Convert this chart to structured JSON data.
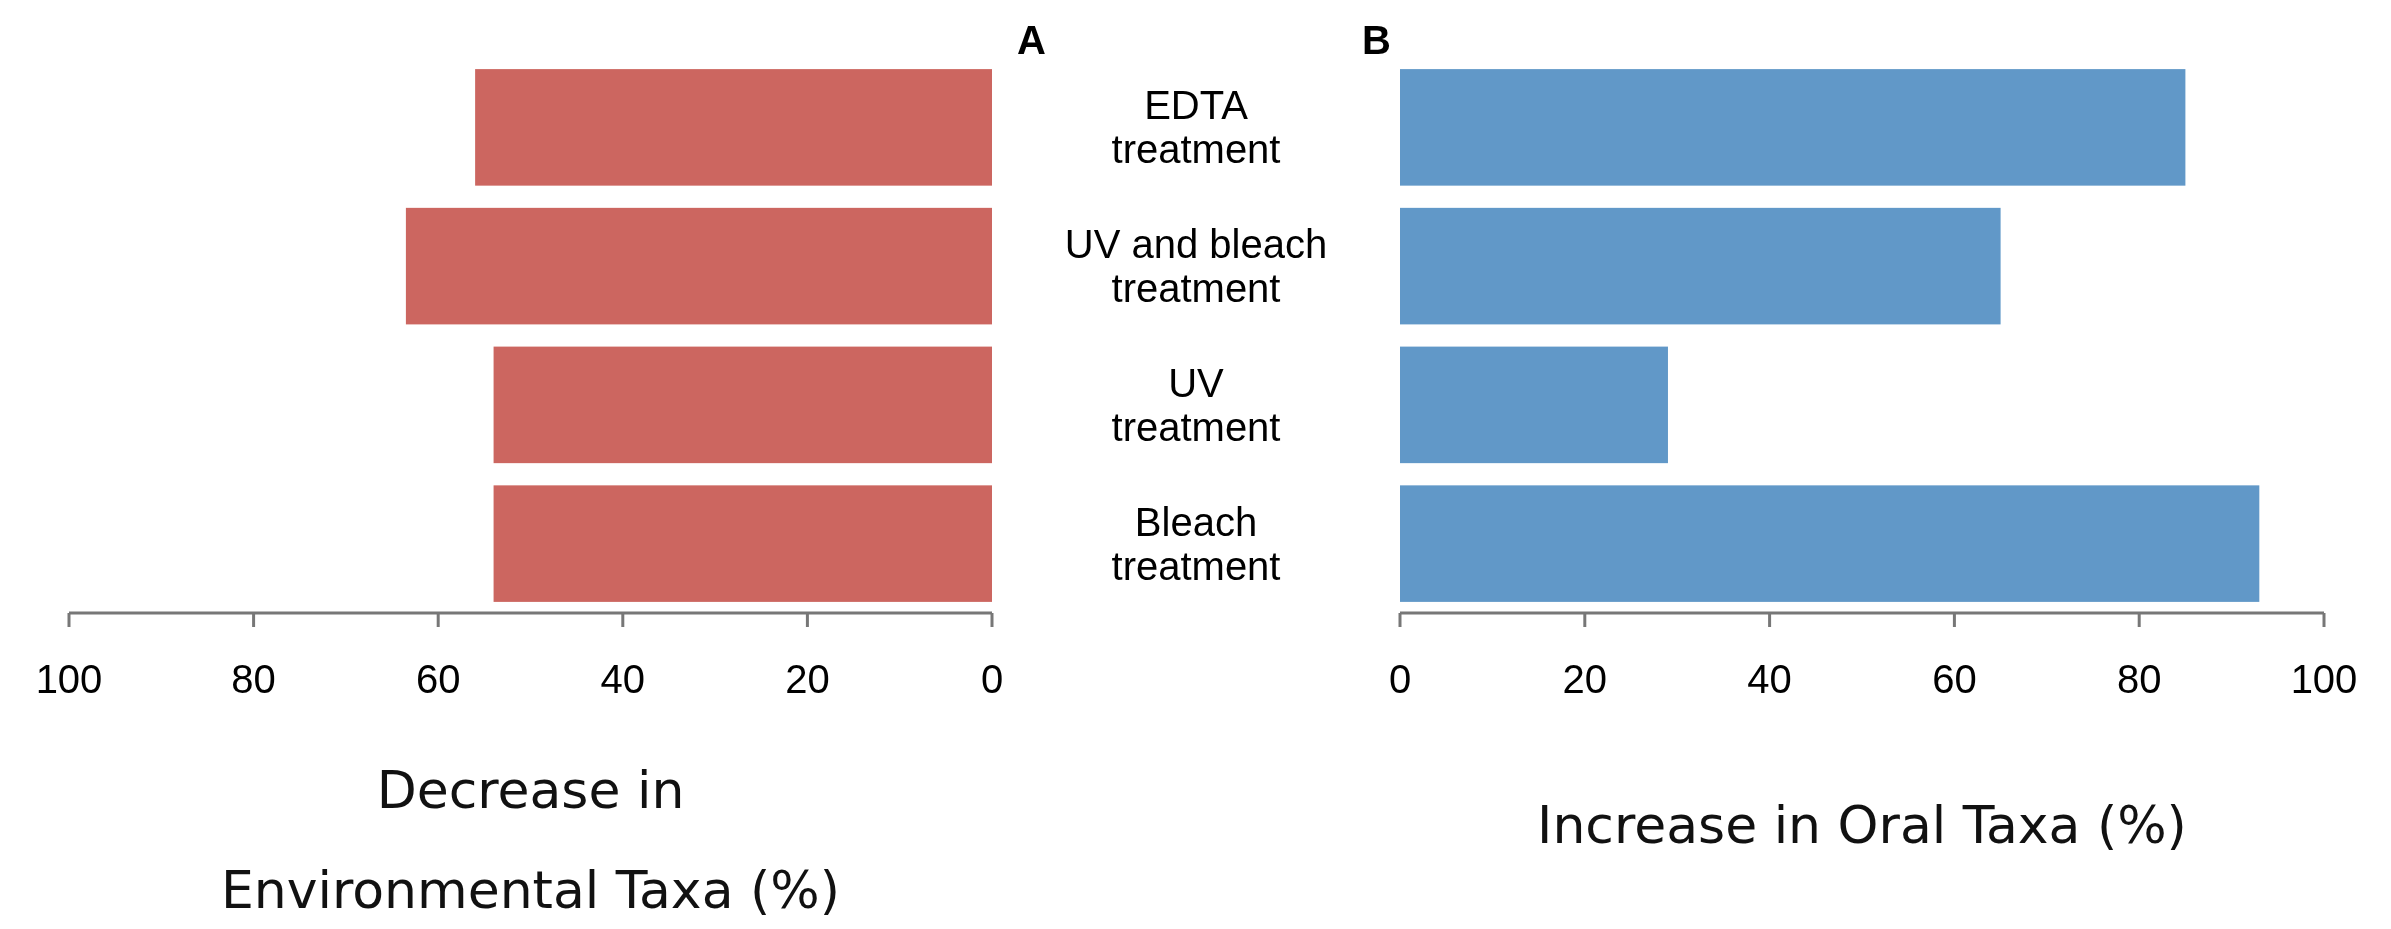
{
  "chart_data": [
    {
      "type": "bar",
      "title": "A",
      "orientation": "horizontal",
      "categories": [
        "EDTA treatment",
        "UV and bleach treatment",
        "UV treatment",
        "Bleach treatment"
      ],
      "tick_labels": "x",
      "values": [
        56,
        63.5,
        54,
        54
      ],
      "color": "#cc6660",
      "xlim": [
        100,
        0
      ],
      "xticks": [
        100,
        80,
        60,
        40,
        20,
        0
      ],
      "xlabel": "Decrease in\nEnvironmental Taxa (%)",
      "grid": false
    },
    {
      "type": "bar",
      "title": "B",
      "orientation": "horizontal",
      "categories": [
        "EDTA treatment",
        "UV and bleach treatment",
        "UV treatment",
        "Bleach treatment"
      ],
      "values": [
        85,
        65,
        29,
        93
      ],
      "color": "#6198c8",
      "xlim": [
        0,
        100
      ],
      "xticks": [
        0,
        20,
        40,
        60,
        80,
        100
      ],
      "xlabel": "Increase in Oral Taxa (%)",
      "grid": false
    }
  ]
}
